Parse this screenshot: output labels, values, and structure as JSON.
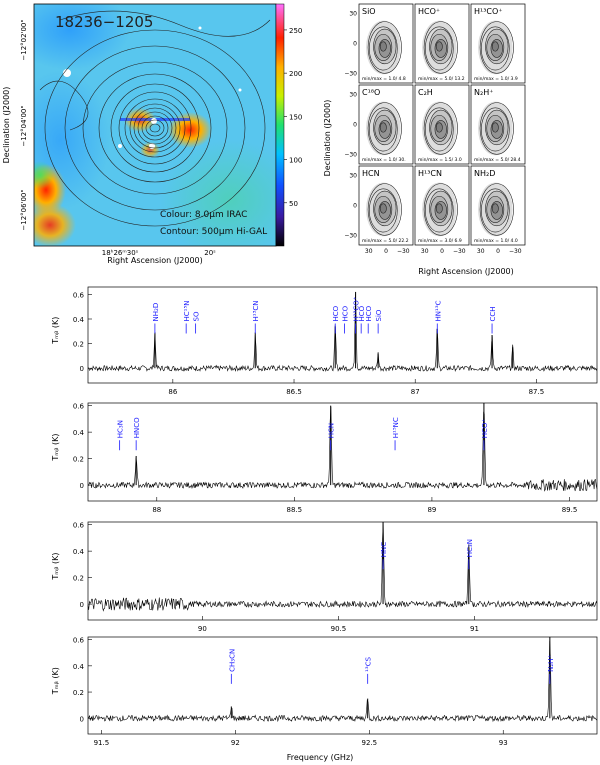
{
  "figure": {
    "map": {
      "source_label": "18236−1205",
      "legend_colour": "Colour: 8.0μm IRAC",
      "legend_contour": "Contour: 500μm Hi-GAL",
      "xlabel": "Right Ascension (J2000)",
      "ylabel": "Declination (J2000)",
      "xticks": [
        "18ʰ26ᵐ30ˢ",
        "20ˢ"
      ],
      "yticks": [
        "−12°02'00\"",
        "−12°04'00\"",
        "−12°06'00\""
      ],
      "colorbar_ticks": [
        "250",
        "200",
        "150",
        "100",
        "50"
      ],
      "colorbar_values": [
        250,
        200,
        150,
        100,
        50
      ],
      "colorbar_range": [
        0,
        280
      ]
    },
    "grid": {
      "xlabel": "Right Ascension (J2000)",
      "ylabel": "Declination (J2000)",
      "xticks": [
        "30",
        "0",
        "−30"
      ],
      "yticks": [
        "30",
        "0",
        "−30"
      ],
      "panels": [
        {
          "name": "SiO",
          "minmax": "min/max =   1.0/   4.8"
        },
        {
          "name": "HCO⁺",
          "minmax": "min/max =   5.0/  13.2"
        },
        {
          "name": "H¹³CO⁺",
          "minmax": "min/max =   1.0/   3.9"
        },
        {
          "name": "C¹⁸O",
          "minmax": "min/max =   1.0/  30."
        },
        {
          "name": "C₂H",
          "minmax": "min/max =   1.5/   3.0"
        },
        {
          "name": "N₂H⁺",
          "minmax": "min/max =   5.0/  28.4"
        },
        {
          "name": "HCN",
          "minmax": "min/max =   5.0/  22.2"
        },
        {
          "name": "H¹³CN",
          "minmax": "min/max =   3.0/   6.9"
        },
        {
          "name": "NH₂D",
          "minmax": "min/max =   1.0/   4.0"
        }
      ]
    },
    "spectra": {
      "ylabel": "Tₘᵦ (K)",
      "xlabel": "Frequency (GHz)",
      "yticks": [
        "0.6",
        "0.4",
        "0.2",
        "0"
      ]
    }
  },
  "chart_data": [
    {
      "type": "line",
      "title": "",
      "xlabel": "",
      "ylabel": "Tmb (K)",
      "xlim": [
        85.65,
        87.75
      ],
      "ylim": [
        -0.12,
        0.66
      ],
      "xticks": [
        86,
        86.5,
        87,
        87.5
      ],
      "yticks": [
        0,
        0.2,
        0.4,
        0.6
      ],
      "peaks": [
        [
          85.926,
          0.29
        ],
        [
          86.34,
          0.29
        ],
        [
          86.67,
          0.34
        ],
        [
          86.754,
          0.62
        ],
        [
          86.847,
          0.12
        ],
        [
          87.091,
          0.32
        ],
        [
          87.317,
          0.27
        ],
        [
          87.402,
          0.17
        ]
      ],
      "line_labels": [
        {
          "label": "NH₂D",
          "freq": 85.926
        },
        {
          "label": "HC¹⁵N",
          "freq": 86.055
        },
        {
          "label": "SO",
          "freq": 86.094
        },
        {
          "label": "H¹³CN",
          "freq": 86.34
        },
        {
          "label": "HCO",
          "freq": 86.67
        },
        {
          "label": "HCO",
          "freq": 86.708
        },
        {
          "label": "H¹³CO⁺",
          "freq": 86.754
        },
        {
          "label": "HCO",
          "freq": 86.777
        },
        {
          "label": "HCO",
          "freq": 86.806
        },
        {
          "label": "SiO",
          "freq": 86.847
        },
        {
          "label": "HN¹³C",
          "freq": 87.091
        },
        {
          "label": "CCH",
          "freq": 87.317
        }
      ]
    },
    {
      "type": "line",
      "xlim": [
        87.75,
        89.6
      ],
      "ylim": [
        -0.12,
        0.62
      ],
      "xticks": [
        88,
        88.5,
        89,
        89.5
      ],
      "yticks": [
        0,
        0.2,
        0.4,
        0.6
      ],
      "peaks": [
        [
          87.925,
          0.22
        ],
        [
          88.632,
          0.6
        ],
        [
          89.189,
          0.62
        ]
      ],
      "line_labels": [
        {
          "label": "HC₃N",
          "freq": 87.865
        },
        {
          "label": "HNCO",
          "freq": 87.925
        },
        {
          "label": "HCN",
          "freq": 88.632
        },
        {
          "label": "H¹⁵NC",
          "freq": 88.866
        },
        {
          "label": "HCO⁺",
          "freq": 89.189
        }
      ]
    },
    {
      "type": "line",
      "xlim": [
        89.58,
        91.45
      ],
      "ylim": [
        -0.12,
        0.62
      ],
      "xticks": [
        90,
        90.5,
        91
      ],
      "yticks": [
        0,
        0.2,
        0.4,
        0.6
      ],
      "peaks": [
        [
          90.664,
          0.62
        ],
        [
          90.979,
          0.45
        ]
      ],
      "line_labels": [
        {
          "label": "HNC",
          "freq": 90.664
        },
        {
          "label": "HC₃N",
          "freq": 90.979
        }
      ]
    },
    {
      "type": "line",
      "xlabel": "Frequency (GHz)",
      "xlim": [
        91.45,
        93.35
      ],
      "ylim": [
        -0.12,
        0.62
      ],
      "xticks": [
        91.5,
        92,
        92.5,
        93
      ],
      "yticks": [
        0,
        0.2,
        0.4,
        0.6
      ],
      "peaks": [
        [
          91.985,
          0.09
        ],
        [
          92.494,
          0.15
        ],
        [
          93.174,
          0.62
        ]
      ],
      "line_labels": [
        {
          "label": "CH₃CN",
          "freq": 91.985
        },
        {
          "label": "¹³CS",
          "freq": 92.494
        },
        {
          "label": "N₂H⁺",
          "freq": 93.174
        }
      ]
    }
  ]
}
